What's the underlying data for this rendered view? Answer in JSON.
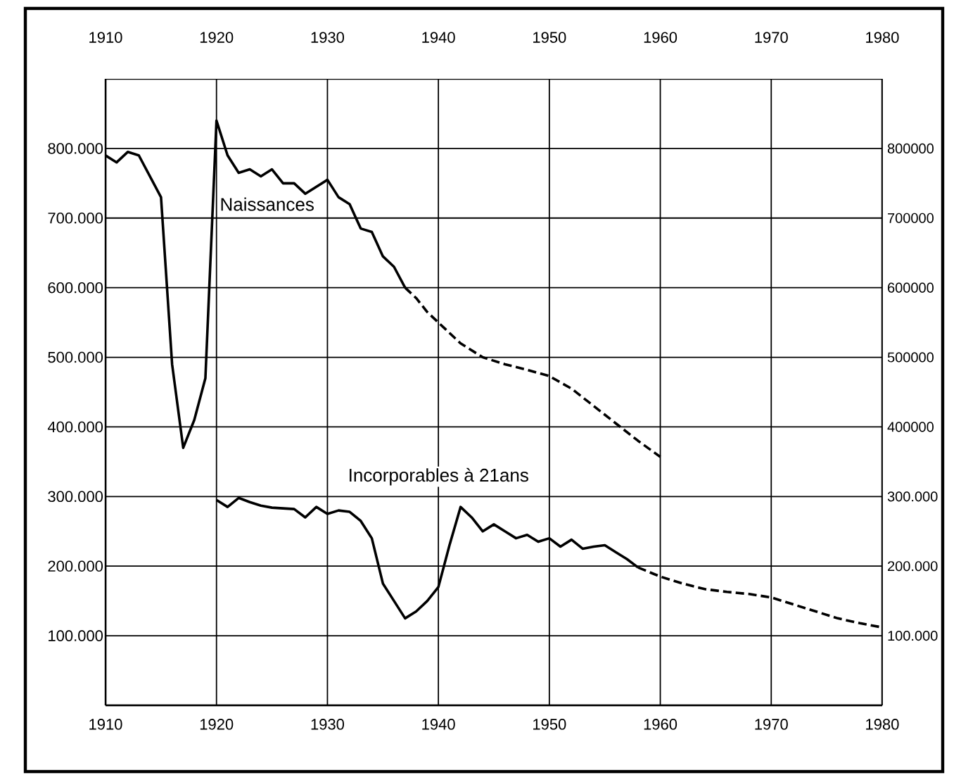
{
  "chart_data": {
    "type": "line",
    "xlim": [
      1910,
      1980
    ],
    "xticks": [
      1910,
      1920,
      1930,
      1940,
      1950,
      1960,
      1970,
      1980
    ],
    "x2lim": [
      1910,
      1980
    ],
    "x2ticks": [
      1910,
      1920,
      1930,
      1940,
      1950,
      1960,
      1970,
      1980
    ],
    "ylim": [
      0,
      900000
    ],
    "yticks": [
      {
        "value": 100000,
        "label": "100.000"
      },
      {
        "value": 200000,
        "label": "200.000"
      },
      {
        "value": 300000,
        "label": "300.000"
      },
      {
        "value": 400000,
        "label": "400.000"
      },
      {
        "value": 500000,
        "label": "500.000"
      },
      {
        "value": 600000,
        "label": "600.000"
      },
      {
        "value": 700000,
        "label": "700.000"
      },
      {
        "value": 800000,
        "label": "800.000"
      }
    ],
    "y2lim": [
      0,
      900000
    ],
    "y2ticks": [
      {
        "value": 100000,
        "label": "100.000"
      },
      {
        "value": 200000,
        "label": "200.000"
      },
      {
        "value": 300000,
        "label": "300.000"
      },
      {
        "value": 400000,
        "label": "400000"
      },
      {
        "value": 500000,
        "label": "500000"
      },
      {
        "value": 600000,
        "label": "600000"
      },
      {
        "value": 700000,
        "label": "700000"
      },
      {
        "value": 800000,
        "label": "800000"
      }
    ],
    "grid": true,
    "series": [
      {
        "name": "Naissances",
        "color": "#000000",
        "line_style": "solid",
        "x": [
          1910,
          1911,
          1912,
          1913,
          1914,
          1915,
          1916,
          1917,
          1918,
          1919,
          1920,
          1921,
          1922,
          1923,
          1924,
          1925,
          1926,
          1927,
          1928,
          1929,
          1930,
          1931,
          1932,
          1933,
          1934,
          1935,
          1936,
          1937
        ],
        "values": [
          790000,
          780000,
          795000,
          790000,
          760000,
          730000,
          490000,
          370000,
          410000,
          470000,
          840000,
          790000,
          765000,
          770000,
          760000,
          770000,
          750000,
          750000,
          735000,
          745000,
          755000,
          730000,
          720000,
          685000,
          680000,
          645000,
          630000,
          600000
        ]
      },
      {
        "color": "#000000",
        "line_style": "dashed",
        "x": [
          1937,
          1938,
          1939,
          1940,
          1942,
          1944,
          1946,
          1948,
          1950,
          1952,
          1954,
          1956,
          1958,
          1960
        ],
        "values": [
          600000,
          585000,
          565000,
          550000,
          520000,
          500000,
          490000,
          482000,
          473000,
          455000,
          430000,
          405000,
          380000,
          357000
        ]
      },
      {
        "name": "Incorporables à 21ans",
        "color": "#000000",
        "line_style": "solid",
        "x": [
          1920,
          1921,
          1922,
          1923,
          1924,
          1925,
          1926,
          1927,
          1928,
          1929,
          1930,
          1931,
          1932,
          1933,
          1934,
          1935,
          1936,
          1937,
          1938,
          1939,
          1940,
          1941,
          1942,
          1943,
          1944,
          1945,
          1946,
          1947,
          1948,
          1949,
          1950,
          1951,
          1952,
          1953,
          1954,
          1955,
          1956,
          1957,
          1958
        ],
        "values": [
          295000,
          285000,
          298000,
          292000,
          287000,
          284000,
          283000,
          282000,
          270000,
          285000,
          275000,
          280000,
          278000,
          265000,
          240000,
          175000,
          150000,
          125000,
          135000,
          150000,
          170000,
          230000,
          285000,
          270000,
          250000,
          260000,
          250000,
          240000,
          245000,
          235000,
          240000,
          228000,
          238000,
          225000,
          228000,
          230000,
          220000,
          210000,
          198000
        ]
      },
      {
        "color": "#000000",
        "line_style": "dashed",
        "x": [
          1958,
          1960,
          1962,
          1964,
          1966,
          1968,
          1970,
          1972,
          1974,
          1976,
          1978,
          1980
        ],
        "values": [
          198000,
          185000,
          175000,
          167000,
          163000,
          160000,
          155000,
          145000,
          135000,
          125000,
          118000,
          112000
        ]
      }
    ]
  }
}
